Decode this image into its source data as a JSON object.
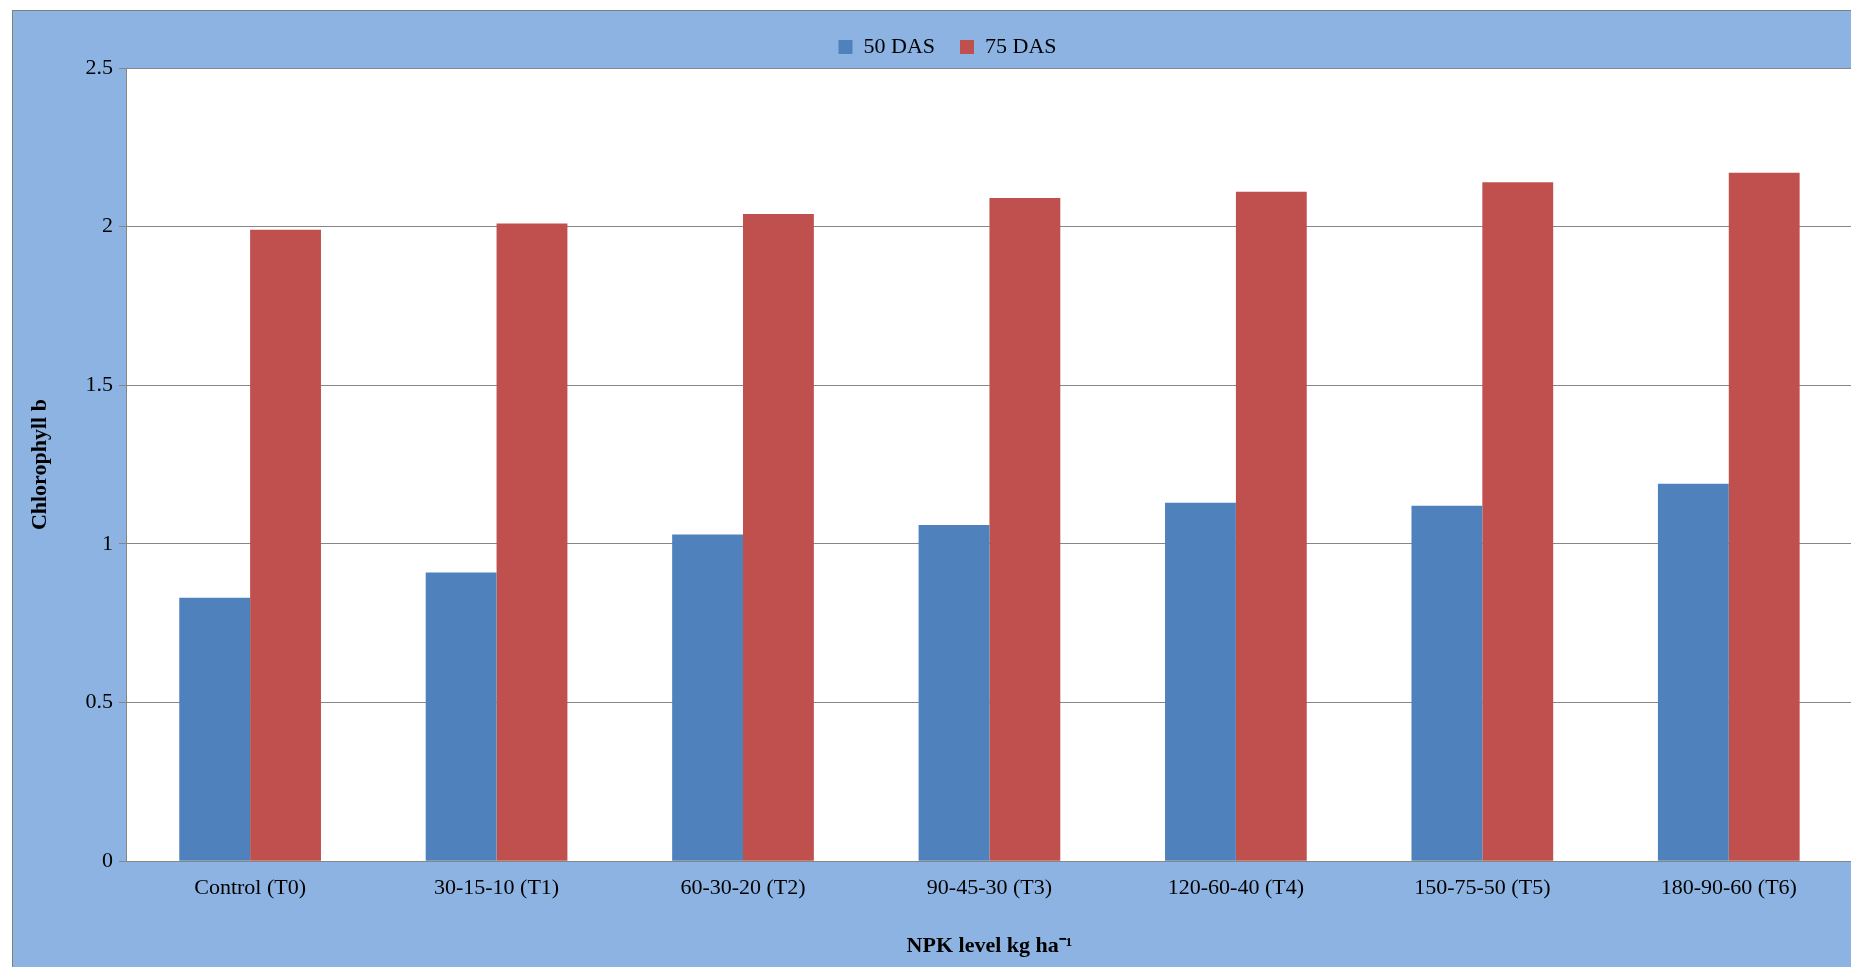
{
  "chart_data": {
    "type": "bar",
    "xlabel": "NPK level kg ha⁻¹",
    "ylabel": "Chlorophyll b",
    "categories": [
      "Control (T0)",
      "30-15-10 (T1)",
      "60-30-20 (T2)",
      "90-45-30 (T3)",
      "120-60-40 (T4)",
      "150-75-50 (T5)",
      "180-90-60 (T6)"
    ],
    "series": [
      {
        "name": "50 DAS",
        "color": "#4f81bd",
        "values": [
          0.83,
          0.91,
          1.03,
          1.06,
          1.13,
          1.12,
          1.19
        ]
      },
      {
        "name": "75 DAS",
        "color": "#c0504d",
        "values": [
          1.99,
          2.01,
          2.04,
          2.09,
          2.11,
          2.14,
          2.17
        ]
      }
    ],
    "ylim": [
      0,
      2.5
    ],
    "yticks": [
      0,
      0.5,
      1,
      1.5,
      2,
      2.5
    ],
    "grid": "y",
    "legend": "top"
  }
}
